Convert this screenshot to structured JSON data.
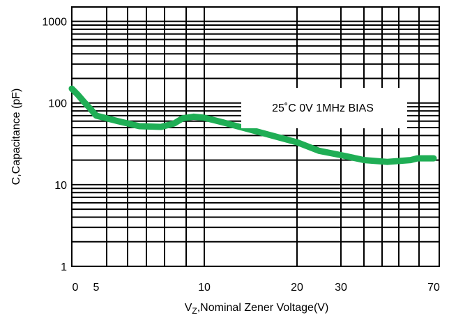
{
  "chart_data": {
    "type": "line",
    "title": "",
    "xlabel_main": "V",
    "xlabel_sub": "Z",
    "xlabel_rest": ",Nominal Zener Voltage(V)",
    "ylabel": "C,Capacitance (pF)",
    "yscale": "log",
    "ylim": [
      1,
      1500
    ],
    "y_ticks": [
      {
        "value": 1,
        "label": "1"
      },
      {
        "value": 10,
        "label": "10"
      },
      {
        "value": 100,
        "label": "100"
      },
      {
        "value": 1000,
        "label": "1000"
      }
    ],
    "x_ticks": [
      "0",
      "5",
      "10",
      "20",
      "30",
      "70"
    ],
    "grid": true,
    "annotation": "25˚C 0V 1MHz BIAS",
    "series": [
      {
        "color": "#1fae55",
        "x": [
          "0",
          "5",
          "10",
          "20",
          "30",
          "70"
        ],
        "points": [
          {
            "x": "0",
            "y": 150
          },
          {
            "x": "1.3",
            "y": 125
          },
          {
            "x": "2.5",
            "y": 103
          },
          {
            "x": "3.8",
            "y": 85
          },
          {
            "x": "5",
            "y": 70
          },
          {
            "x": "6",
            "y": 60
          },
          {
            "x": "7",
            "y": 52
          },
          {
            "x": "8",
            "y": 51
          },
          {
            "x": "8.6",
            "y": 56
          },
          {
            "x": "9",
            "y": 65
          },
          {
            "x": "9.5",
            "y": 68
          },
          {
            "x": "10",
            "y": 66
          },
          {
            "x": "12",
            "y": 58
          },
          {
            "x": "15",
            "y": 47
          },
          {
            "x": "20",
            "y": 33
          },
          {
            "x": "25",
            "y": 26
          },
          {
            "x": "30",
            "y": 23
          },
          {
            "x": "40",
            "y": 20
          },
          {
            "x": "50",
            "y": 19
          },
          {
            "x": "60",
            "y": 20
          },
          {
            "x": "63",
            "y": 21
          },
          {
            "x": "70",
            "y": 21
          }
        ]
      }
    ]
  }
}
